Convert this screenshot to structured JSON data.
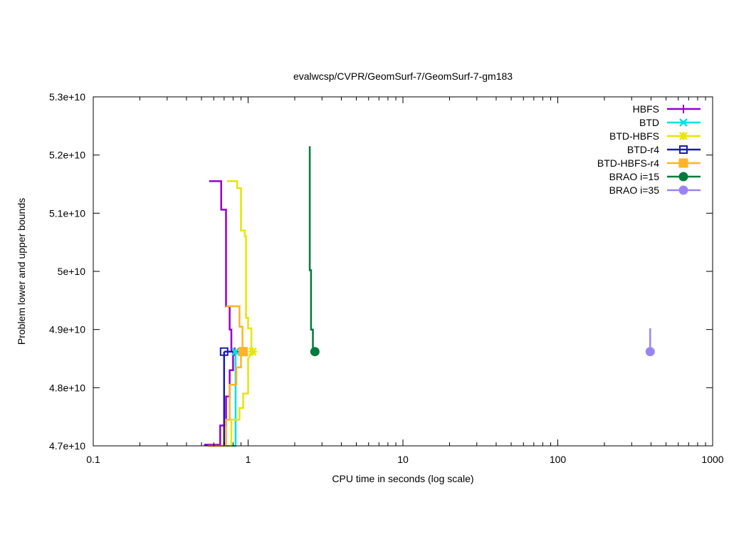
{
  "chart_data": {
    "type": "line",
    "title": "evalwcsp/CVPR/GeomSurf-7/GeomSurf-7-gm183",
    "xlabel": "CPU time in seconds (log scale)",
    "ylabel": "Problem lower and upper bounds",
    "x_scale": "log",
    "xlim": [
      0.1,
      1000
    ],
    "ylim": [
      47000000000,
      53000000000
    ],
    "x_ticks": [
      {
        "value": 0.1,
        "label": "0.1"
      },
      {
        "value": 1,
        "label": "1"
      },
      {
        "value": 10,
        "label": "10"
      },
      {
        "value": 100,
        "label": "100"
      },
      {
        "value": 1000,
        "label": "1000"
      }
    ],
    "y_ticks": [
      {
        "value": 47000000000,
        "label": "4.7e+10"
      },
      {
        "value": 48000000000,
        "label": "4.8e+10"
      },
      {
        "value": 49000000000,
        "label": "4.9e+10"
      },
      {
        "value": 50000000000,
        "label": "5e+10"
      },
      {
        "value": 51000000000,
        "label": "5.1e+10"
      },
      {
        "value": 52000000000,
        "label": "5.2e+10"
      },
      {
        "value": 53000000000,
        "label": "5.3e+10"
      }
    ],
    "legend_position": "top-right",
    "grid": false,
    "series": [
      {
        "name": "HBFS",
        "color": "#9400d3",
        "marker": "plus",
        "upper": [
          [
            0.56,
            51550000000
          ],
          [
            0.67,
            51550000000
          ],
          [
            0.67,
            51060000000
          ],
          [
            0.72,
            51060000000
          ],
          [
            0.72,
            49400000000
          ],
          [
            0.76,
            49400000000
          ],
          [
            0.76,
            49000000000
          ],
          [
            0.78,
            49000000000
          ],
          [
            0.78,
            48620000000
          ],
          [
            0.82,
            48620000000
          ]
        ],
        "lower": [
          [
            0.52,
            47020000000
          ],
          [
            0.66,
            47020000000
          ],
          [
            0.66,
            47350000000
          ],
          [
            0.72,
            47350000000
          ],
          [
            0.72,
            47850000000
          ],
          [
            0.76,
            47850000000
          ],
          [
            0.76,
            48300000000
          ],
          [
            0.8,
            48300000000
          ],
          [
            0.8,
            48620000000
          ],
          [
            0.82,
            48620000000
          ]
        ],
        "final": [
          0.82,
          48620000000
        ]
      },
      {
        "name": "BTD",
        "color": "#00e0e0",
        "marker": "cross",
        "upper": [
          [
            0.8,
            48620000000
          ],
          [
            0.83,
            48620000000
          ]
        ],
        "lower": [
          [
            0.72,
            47000000000
          ],
          [
            0.83,
            47000000000
          ],
          [
            0.83,
            48150000000
          ],
          [
            0.83,
            48620000000
          ]
        ],
        "final": [
          0.83,
          48620000000
        ]
      },
      {
        "name": "BTD-HBFS",
        "color": "#e6e600",
        "marker": "star",
        "upper": [
          [
            0.73,
            51550000000
          ],
          [
            0.85,
            51550000000
          ],
          [
            0.85,
            51430000000
          ],
          [
            0.9,
            51430000000
          ],
          [
            0.9,
            50700000000
          ],
          [
            0.95,
            50700000000
          ],
          [
            0.95,
            50600000000
          ],
          [
            0.97,
            50600000000
          ],
          [
            0.97,
            49200000000
          ],
          [
            1.0,
            49200000000
          ],
          [
            1.0,
            49020000000
          ],
          [
            1.05,
            49020000000
          ],
          [
            1.05,
            48620000000
          ],
          [
            1.07,
            48620000000
          ]
        ],
        "lower": [
          [
            0.75,
            47000000000
          ],
          [
            0.78,
            47000000000
          ],
          [
            0.78,
            47450000000
          ],
          [
            0.88,
            47450000000
          ],
          [
            0.88,
            47650000000
          ],
          [
            0.93,
            47650000000
          ],
          [
            0.93,
            47900000000
          ],
          [
            1.0,
            47900000000
          ],
          [
            1.0,
            48500000000
          ],
          [
            1.07,
            48620000000
          ]
        ],
        "final": [
          1.07,
          48620000000
        ]
      },
      {
        "name": "BTD-r4",
        "color": "#1a1ab3",
        "marker": "square-open",
        "upper": [
          [
            0.7,
            48620000000
          ],
          [
            0.8,
            48620000000
          ]
        ],
        "lower": [
          [
            0.69,
            47000000000
          ],
          [
            0.7,
            47000000000
          ],
          [
            0.7,
            48620000000
          ]
        ],
        "final": [
          0.7,
          48620000000
        ]
      },
      {
        "name": "BTD-HBFS-r4",
        "color": "#ffb326",
        "marker": "square-filled",
        "upper": [
          [
            0.72,
            49400000000
          ],
          [
            0.88,
            49400000000
          ],
          [
            0.88,
            49050000000
          ],
          [
            0.92,
            49050000000
          ],
          [
            0.92,
            48620000000
          ],
          [
            0.93,
            48620000000
          ]
        ],
        "lower": [
          [
            0.55,
            47000000000
          ],
          [
            0.72,
            47000000000
          ],
          [
            0.72,
            47450000000
          ],
          [
            0.76,
            47450000000
          ],
          [
            0.76,
            48050000000
          ],
          [
            0.84,
            48050000000
          ],
          [
            0.84,
            48350000000
          ],
          [
            0.9,
            48350000000
          ],
          [
            0.9,
            48620000000
          ],
          [
            0.93,
            48620000000
          ]
        ],
        "final": [
          0.93,
          48620000000
        ]
      },
      {
        "name": "BRAO i=15",
        "color": "#007a3d",
        "marker": "circle-filled",
        "upper": [
          [
            2.5,
            52150000000
          ],
          [
            2.5,
            50020000000
          ],
          [
            2.55,
            50020000000
          ],
          [
            2.55,
            49000000000
          ],
          [
            2.62,
            49000000000
          ],
          [
            2.62,
            48620000000
          ],
          [
            2.7,
            48620000000
          ]
        ],
        "lower": [],
        "final": [
          2.7,
          48620000000
        ]
      },
      {
        "name": "BRAO i=35",
        "color": "#9b84f0",
        "marker": "circle-filled",
        "upper": [
          [
            395,
            49020000000
          ],
          [
            395,
            48620000000
          ]
        ],
        "lower": [],
        "final": [
          395,
          48620000000
        ]
      }
    ]
  }
}
